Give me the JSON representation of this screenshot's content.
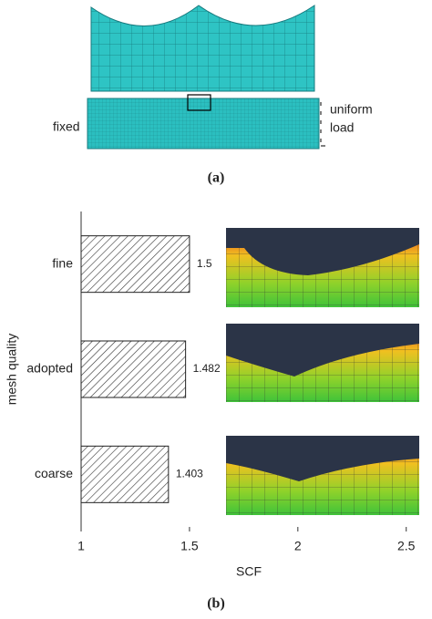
{
  "figure_a": {
    "left_label": "fixed",
    "right_label_1": "uniform",
    "right_label_2": "load",
    "caption": "(a)"
  },
  "chart_data": {
    "type": "barh",
    "xlabel": "SCF",
    "ylabel": "mesh quality",
    "categories": [
      "fine",
      "adopted",
      "coarse"
    ],
    "values": [
      1.5,
      1.482,
      1.403
    ],
    "xlim": [
      1,
      2.56
    ],
    "xticks": [
      1,
      1.5,
      2,
      2.5
    ],
    "bar_fill": "hatch"
  },
  "caption_b": "(b)"
}
